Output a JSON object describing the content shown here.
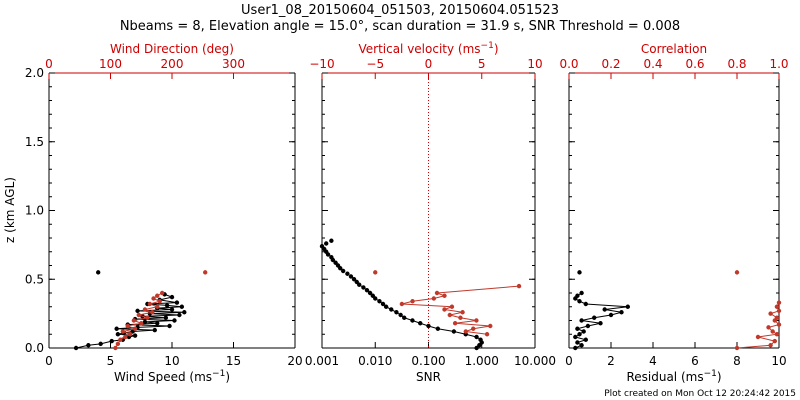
{
  "header": {
    "title": "User1_08_20150604_051503, 20150604.051523",
    "subtitle": "Nbeams = 8, Elevation angle = 15.0°, scan duration = 31.9 s, SNR Threshold = 0.008"
  },
  "footer": {
    "note": "Plot created on Mon Oct 12 20:24:42 2015"
  },
  "colors": {
    "primary": "#000000",
    "secondary": "#c0392b",
    "axis_red": "#cc0000"
  },
  "chart_data": [
    {
      "type": "scatter",
      "panel": "wind",
      "ylabel": "z (km AGL)",
      "ylim": [
        0,
        2.0
      ],
      "yticks": [
        "0.0",
        "0.5",
        "1.0",
        "1.5",
        "2.0"
      ],
      "bottom_axis": {
        "label": "Wind Speed (ms",
        "label_sup": "−1",
        "label_end": ")",
        "range": [
          0,
          20
        ],
        "ticks": [
          "0",
          "5",
          "10",
          "15",
          "20"
        ],
        "scale": "linear"
      },
      "top_axis": {
        "label": "Wind Direction (deg)",
        "range": [
          0,
          400
        ],
        "ticks": [
          "0",
          "100",
          "200",
          "300"
        ],
        "scale": "linear"
      },
      "series": [
        {
          "name": "Wind Speed",
          "axis": "bottom",
          "color": "#000000",
          "points": [
            [
              2.2,
              0.0
            ],
            [
              3.2,
              0.02
            ],
            [
              4.2,
              0.03
            ],
            [
              5.1,
              0.05
            ],
            [
              6.0,
              0.06
            ],
            [
              6.5,
              0.08
            ],
            [
              7.0,
              0.09
            ],
            [
              5.6,
              0.1
            ],
            [
              6.1,
              0.11
            ],
            [
              6.8,
              0.12
            ],
            [
              8.6,
              0.13
            ],
            [
              5.5,
              0.14
            ],
            [
              7.2,
              0.15
            ],
            [
              9.8,
              0.16
            ],
            [
              6.4,
              0.17
            ],
            [
              8.8,
              0.18
            ],
            [
              7.8,
              0.19
            ],
            [
              10.2,
              0.2
            ],
            [
              7.0,
              0.21
            ],
            [
              9.5,
              0.22
            ],
            [
              7.6,
              0.23
            ],
            [
              10.6,
              0.24
            ],
            [
              8.2,
              0.25
            ],
            [
              11.0,
              0.26
            ],
            [
              7.2,
              0.27
            ],
            [
              10.0,
              0.28
            ],
            [
              8.8,
              0.29
            ],
            [
              10.8,
              0.3
            ],
            [
              9.6,
              0.31
            ],
            [
              8.0,
              0.32
            ],
            [
              10.4,
              0.33
            ],
            [
              9.0,
              0.35
            ],
            [
              10.0,
              0.37
            ],
            [
              9.4,
              0.39
            ],
            [
              4.0,
              0.55
            ]
          ]
        },
        {
          "name": "Wind Direction",
          "axis": "top",
          "color": "#c0392b",
          "points": [
            [
              108,
              0.0
            ],
            [
              112,
              0.03
            ],
            [
              116,
              0.06
            ],
            [
              124,
              0.08
            ],
            [
              132,
              0.1
            ],
            [
              120,
              0.12
            ],
            [
              140,
              0.14
            ],
            [
              128,
              0.16
            ],
            [
              150,
              0.18
            ],
            [
              138,
              0.2
            ],
            [
              160,
              0.22
            ],
            [
              146,
              0.24
            ],
            [
              168,
              0.26
            ],
            [
              156,
              0.28
            ],
            [
              176,
              0.3
            ],
            [
              164,
              0.32
            ],
            [
              180,
              0.34
            ],
            [
              170,
              0.36
            ],
            [
              176,
              0.38
            ],
            [
              184,
              0.4
            ],
            [
              254,
              0.55
            ]
          ]
        }
      ]
    },
    {
      "type": "scatter",
      "panel": "snr",
      "ylim": [
        0,
        2.0
      ],
      "bottom_axis": {
        "label": "SNR",
        "range": [
          0.001,
          10
        ],
        "ticks": [
          "0.001",
          "0.010",
          "0.100",
          "1.000",
          "10.000"
        ],
        "scale": "log"
      },
      "top_axis": {
        "label": "Vertical velocity (ms",
        "label_sup": "−1",
        "label_end": ")",
        "range": [
          -10,
          10
        ],
        "ticks": [
          "−10",
          "−5",
          "0",
          "5",
          "10"
        ],
        "scale": "linear"
      },
      "zero_line": 0,
      "series": [
        {
          "name": "SNR",
          "axis": "bottom",
          "color": "#000000",
          "points": [
            [
              0.8,
              0.0
            ],
            [
              0.9,
              0.02
            ],
            [
              1.0,
              0.04
            ],
            [
              0.95,
              0.06
            ],
            [
              0.8,
              0.08
            ],
            [
              0.5,
              0.1
            ],
            [
              0.3,
              0.12
            ],
            [
              0.15,
              0.14
            ],
            [
              0.1,
              0.16
            ],
            [
              0.07,
              0.18
            ],
            [
              0.05,
              0.2
            ],
            [
              0.035,
              0.22
            ],
            [
              0.03,
              0.24
            ],
            [
              0.025,
              0.26
            ],
            [
              0.02,
              0.28
            ],
            [
              0.016,
              0.3
            ],
            [
              0.014,
              0.32
            ],
            [
              0.012,
              0.34
            ],
            [
              0.01,
              0.36
            ],
            [
              0.009,
              0.38
            ],
            [
              0.008,
              0.4
            ],
            [
              0.007,
              0.42
            ],
            [
              0.006,
              0.44
            ],
            [
              0.005,
              0.46
            ],
            [
              0.0045,
              0.48
            ],
            [
              0.004,
              0.5
            ],
            [
              0.0035,
              0.52
            ],
            [
              0.003,
              0.54
            ],
            [
              0.0025,
              0.56
            ],
            [
              0.0022,
              0.58
            ],
            [
              0.002,
              0.6
            ],
            [
              0.0018,
              0.62
            ],
            [
              0.0016,
              0.64
            ],
            [
              0.0015,
              0.66
            ],
            [
              0.0013,
              0.68
            ],
            [
              0.0012,
              0.7
            ],
            [
              0.0011,
              0.72
            ],
            [
              0.001,
              0.74
            ],
            [
              0.0012,
              0.76
            ],
            [
              0.0015,
              0.78
            ]
          ]
        },
        {
          "name": "Vertical velocity",
          "axis": "top",
          "color": "#c0392b",
          "points": [
            [
              5.5,
              0.1
            ],
            [
              3.5,
              0.12
            ],
            [
              4.2,
              0.14
            ],
            [
              5.8,
              0.16
            ],
            [
              2.5,
              0.18
            ],
            [
              4.5,
              0.2
            ],
            [
              3.0,
              0.22
            ],
            [
              2.0,
              0.24
            ],
            [
              3.2,
              0.26
            ],
            [
              1.5,
              0.28
            ],
            [
              2.2,
              0.3
            ],
            [
              -2.5,
              0.32
            ],
            [
              -1.5,
              0.34
            ],
            [
              0.5,
              0.36
            ],
            [
              1.5,
              0.38
            ],
            [
              0.8,
              0.4
            ],
            [
              -5.0,
              0.55
            ],
            [
              8.5,
              0.45
            ]
          ]
        }
      ]
    },
    {
      "type": "scatter",
      "panel": "residual",
      "ylim": [
        0,
        2.0
      ],
      "bottom_axis": {
        "label": "Residual (ms",
        "label_sup": "−1",
        "label_end": ")",
        "range": [
          0,
          10
        ],
        "ticks": [
          "0",
          "2",
          "4",
          "6",
          "8",
          "10"
        ],
        "scale": "linear"
      },
      "top_axis": {
        "label": "Correlation",
        "range": [
          0,
          1.0
        ],
        "ticks": [
          "0.0",
          "0.2",
          "0.4",
          "0.6",
          "0.8",
          "1.0"
        ],
        "scale": "linear"
      },
      "series": [
        {
          "name": "Residual",
          "axis": "bottom",
          "color": "#000000",
          "points": [
            [
              0.3,
              0.0
            ],
            [
              0.6,
              0.02
            ],
            [
              0.4,
              0.04
            ],
            [
              0.8,
              0.06
            ],
            [
              0.3,
              0.08
            ],
            [
              0.5,
              0.1
            ],
            [
              0.7,
              0.12
            ],
            [
              0.4,
              0.14
            ],
            [
              0.9,
              0.16
            ],
            [
              1.5,
              0.18
            ],
            [
              0.6,
              0.2
            ],
            [
              1.2,
              0.22
            ],
            [
              2.0,
              0.24
            ],
            [
              2.5,
              0.26
            ],
            [
              1.7,
              0.28
            ],
            [
              2.8,
              0.3
            ],
            [
              0.8,
              0.32
            ],
            [
              0.5,
              0.34
            ],
            [
              0.3,
              0.36
            ],
            [
              0.4,
              0.38
            ],
            [
              0.6,
              0.4
            ],
            [
              0.5,
              0.55
            ]
          ]
        },
        {
          "name": "Correlation",
          "axis": "top",
          "color": "#c0392b",
          "points": [
            [
              0.8,
              0.0
            ],
            [
              0.96,
              0.02
            ],
            [
              0.98,
              0.05
            ],
            [
              0.9,
              0.08
            ],
            [
              0.99,
              0.1
            ],
            [
              0.97,
              0.12
            ],
            [
              0.95,
              0.15
            ],
            [
              1.0,
              0.17
            ],
            [
              0.98,
              0.2
            ],
            [
              0.99,
              0.22
            ],
            [
              0.96,
              0.25
            ],
            [
              1.0,
              0.27
            ],
            [
              0.99,
              0.3
            ],
            [
              1.0,
              0.33
            ],
            [
              0.8,
              0.55
            ]
          ]
        }
      ]
    }
  ]
}
